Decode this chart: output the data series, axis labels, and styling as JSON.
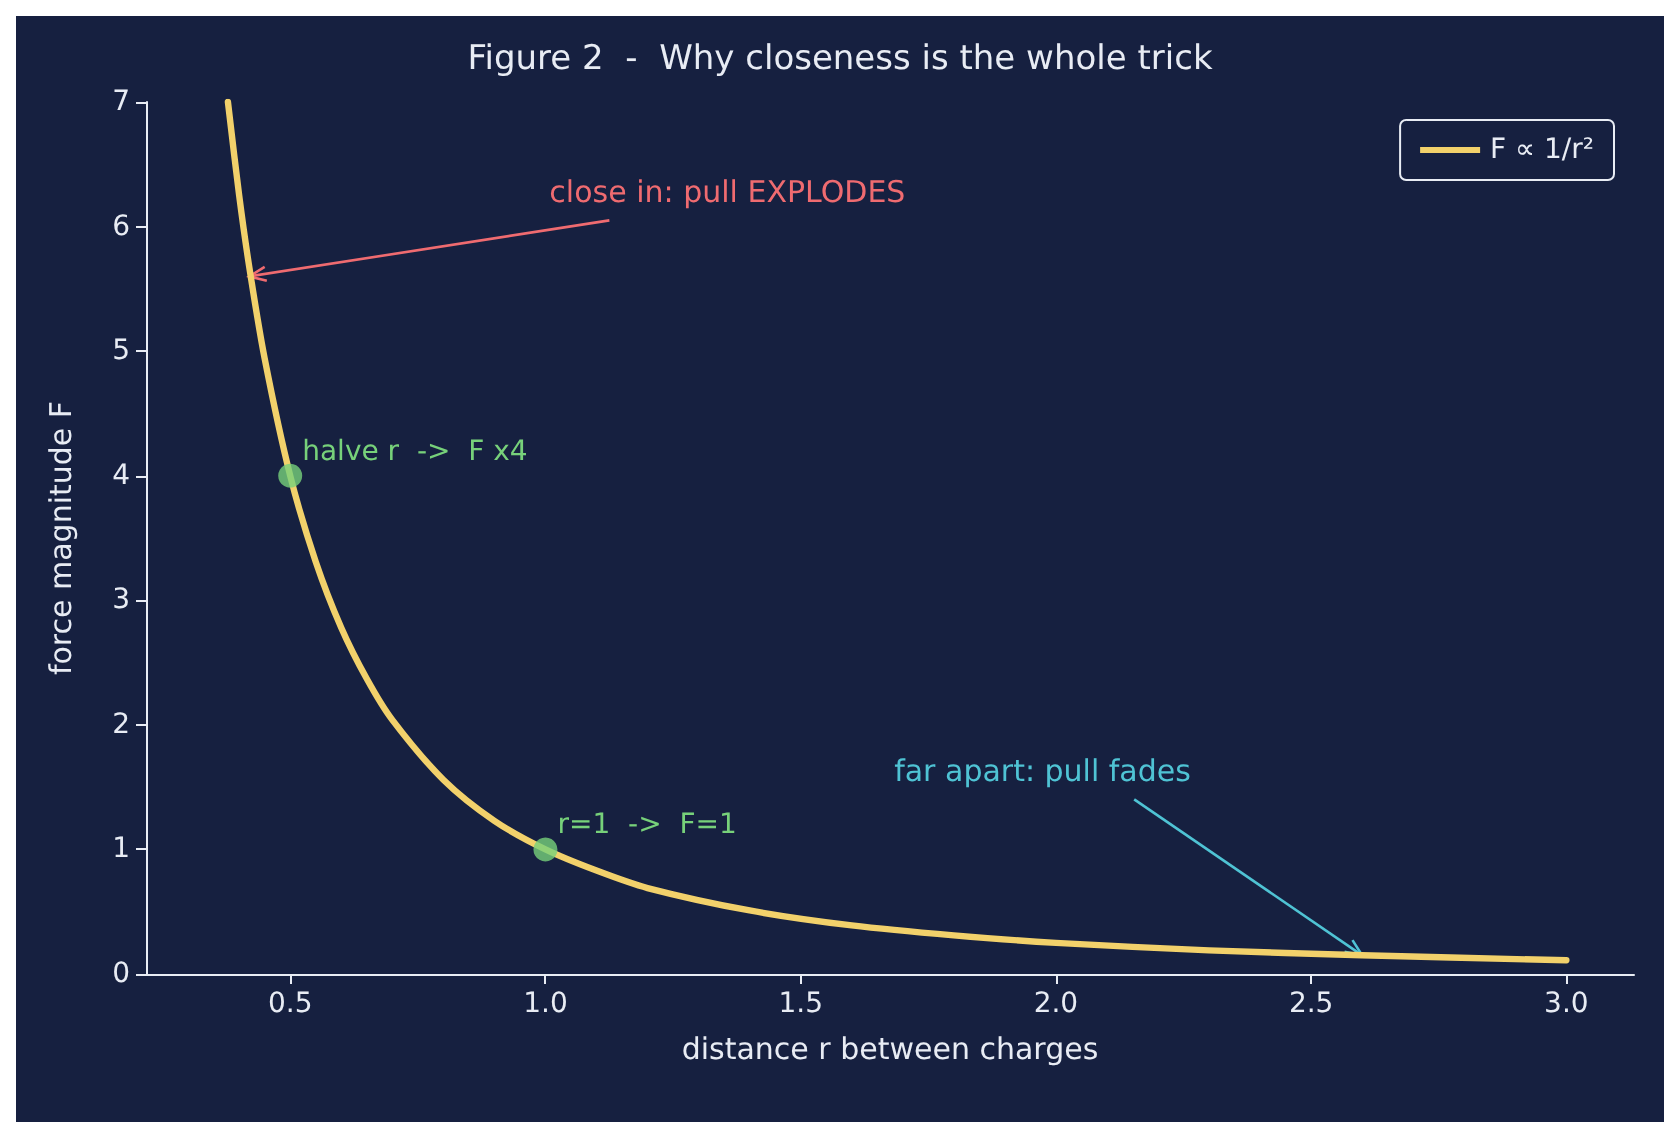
{
  "chart_data": {
    "type": "line",
    "title": "Figure 2  -  Why closeness is the whole trick",
    "xlabel": "distance r between charges",
    "ylabel": "force magnitude F",
    "xlim": [
      0.2175,
      3.1325
    ],
    "xticks": [
      0.5,
      {
        "value": 1,
        "label": "1.0"
      },
      1.5,
      {
        "value": 2,
        "label": "2.0"
      },
      2.5,
      {
        "value": 3,
        "label": "3.0"
      }
    ],
    "ylim": [
      0,
      7
    ],
    "yticks": [
      0,
      1,
      2,
      3,
      4,
      5,
      6,
      7
    ],
    "grid": false,
    "legend": "top right",
    "line_style": "solid",
    "marker": "none",
    "series": [
      {
        "name": "F ∝ 1/r²",
        "color": "#f2d16b",
        "x": [
          0.378,
          0.4,
          0.42,
          0.45,
          0.5,
          0.55,
          0.6,
          0.65,
          0.7,
          0.8,
          0.9,
          1.0,
          1.1,
          1.2,
          1.4,
          1.6,
          1.8,
          2.0,
          2.3,
          2.6,
          3.0
        ],
        "values": [
          7.0,
          6.25,
          5.67,
          4.94,
          4.0,
          3.31,
          2.78,
          2.37,
          2.04,
          1.56,
          1.23,
          1.0,
          0.83,
          0.69,
          0.51,
          0.39,
          0.31,
          0.25,
          0.19,
          0.15,
          0.11
        ]
      },
      {
        "type": "scatter",
        "marker": "circle",
        "color": "#77d17a",
        "x": [
          0.5,
          1.0
        ],
        "values": [
          4,
          1
        ]
      }
    ],
    "annotations": [
      {
        "text": "close in: pull EXPLODES",
        "x": 0.42,
        "y": 5.6
      },
      {
        "text": "far apart: pull fades",
        "x": 2.6,
        "y": 0.15
      },
      {
        "text": "halve r  ->  F x4",
        "x": 0.5,
        "y": 4
      },
      {
        "text": "r=1  ->  F=1",
        "x": 1.0,
        "y": 1
      }
    ]
  }
}
